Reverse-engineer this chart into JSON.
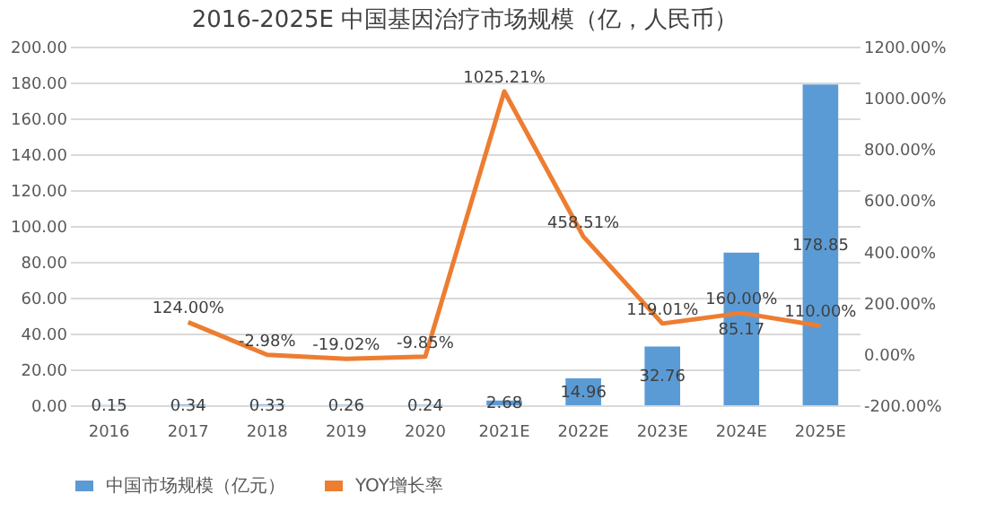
{
  "chart_data": {
    "type": "bar",
    "title": "2016-2025E 中国基因治疗市场规模（亿，人民币）",
    "categories": [
      "2016",
      "2017",
      "2018",
      "2019",
      "2020",
      "2021E",
      "2022E",
      "2023E",
      "2024E",
      "2025E"
    ],
    "series": [
      {
        "name": "中国市场规模（亿元）",
        "color": "#5b9bd5",
        "values": [
          0.15,
          0.34,
          0.33,
          0.26,
          0.24,
          2.68,
          14.96,
          32.76,
          85.17,
          178.85
        ],
        "value_labels": [
          "0.15",
          "0.34",
          "0.33",
          "0.26",
          "0.24",
          "2.68",
          "14.96",
          "32.76",
          "85.17",
          "178.85"
        ]
      },
      {
        "name": "YOY增长率",
        "type": "line",
        "axis": "y2",
        "color": "#ed7d31",
        "values": [
          null,
          124.0,
          -2.98,
          -19.02,
          -9.85,
          1025.21,
          458.51,
          119.01,
          160.0,
          110.0
        ],
        "value_labels": [
          null,
          "124.00%",
          "-2.98%",
          "-19.02%",
          "-9.85%",
          "1025.21%",
          "458.51%",
          "119.01%",
          "160.00%",
          "110.00%"
        ]
      }
    ],
    "ylim": [
      0,
      200
    ],
    "yticks": [
      {
        "value": 0,
        "label": "0.00"
      },
      {
        "value": 20,
        "label": "20.00"
      },
      {
        "value": 40,
        "label": "40.00"
      },
      {
        "value": 60,
        "label": "60.00"
      },
      {
        "value": 80,
        "label": "80.00"
      },
      {
        "value": 100,
        "label": "100.00"
      },
      {
        "value": 120,
        "label": "120.00"
      },
      {
        "value": 140,
        "label": "140.00"
      },
      {
        "value": 160,
        "label": "160.00"
      },
      {
        "value": 180,
        "label": "180.00"
      },
      {
        "value": 200,
        "label": "200.00"
      }
    ],
    "y2lim": [
      -200,
      1200
    ],
    "y2ticks": [
      {
        "value": -200,
        "label": "-200.00%"
      },
      {
        "value": 0,
        "label": "0.00%"
      },
      {
        "value": 200,
        "label": "200.00%"
      },
      {
        "value": 400,
        "label": "400.00%"
      },
      {
        "value": 600,
        "label": "600.00%"
      },
      {
        "value": 800,
        "label": "800.00%"
      },
      {
        "value": 1000,
        "label": "1000.00%"
      },
      {
        "value": 1200,
        "label": "1200.00%"
      }
    ],
    "grid": "y",
    "legend": "bottom",
    "marker": "none",
    "line_style": "solid"
  }
}
